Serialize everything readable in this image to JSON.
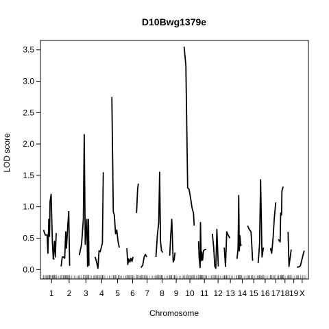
{
  "chart_data": {
    "type": "line",
    "title": "D10Bwg1379e",
    "xlabel": "Chromosome",
    "ylabel": "LOD score",
    "ylim": [
      -0.15,
      3.65
    ],
    "yticks": [
      0.0,
      0.5,
      1.0,
      1.5,
      2.0,
      2.5,
      3.0,
      3.5
    ],
    "ytick_labels": [
      "0.0",
      "0.5",
      "1.0",
      "1.5",
      "2.0",
      "2.5",
      "3.0",
      "3.5"
    ],
    "grid": false,
    "legend": "none",
    "x_unit": "cM (cumulative genome position)",
    "chromosomes": [
      {
        "label": "1",
        "start": 0,
        "length": 95
      },
      {
        "label": "2",
        "start": 100,
        "length": 95
      },
      {
        "label": "3",
        "start": 200,
        "length": 85
      },
      {
        "label": "4",
        "start": 290,
        "length": 85
      },
      {
        "label": "5",
        "start": 380,
        "length": 85
      },
      {
        "label": "6",
        "start": 470,
        "length": 75
      },
      {
        "label": "7",
        "start": 550,
        "length": 80
      },
      {
        "label": "8",
        "start": 635,
        "length": 80
      },
      {
        "label": "9",
        "start": 720,
        "length": 70
      },
      {
        "label": "10",
        "start": 795,
        "length": 75
      },
      {
        "label": "11",
        "start": 875,
        "length": 80
      },
      {
        "label": "12",
        "start": 960,
        "length": 65
      },
      {
        "label": "13",
        "start": 1030,
        "length": 65
      },
      {
        "label": "14",
        "start": 1100,
        "length": 60
      },
      {
        "label": "15",
        "start": 1165,
        "length": 60
      },
      {
        "label": "16",
        "start": 1230,
        "length": 60
      },
      {
        "label": "17",
        "start": 1295,
        "length": 50
      },
      {
        "label": "18",
        "start": 1350,
        "length": 45
      },
      {
        "label": "19",
        "start": 1400,
        "length": 45
      },
      {
        "label": "X",
        "start": 1450,
        "length": 40
      }
    ],
    "x_range": [
      0,
      1490
    ],
    "series": [
      {
        "chr": "1",
        "x": [
          2,
          12,
          22,
          27,
          32,
          36,
          39,
          45,
          52,
          57,
          64
        ],
        "y": [
          0.63,
          0.55,
          0.55,
          0.26,
          0.8,
          0.53,
          1.08,
          1.2,
          0.45,
          0.17,
          0.17
        ]
      },
      {
        "chr": "1b",
        "x": [
          57,
          64,
          69,
          74
        ],
        "y": [
          0.17,
          0.45,
          0.2,
          0.58
        ]
      },
      {
        "chr": "2",
        "x": [
          102,
          108,
          114,
          122,
          128,
          132,
          138,
          145
        ],
        "y": [
          0.05,
          0.2,
          0.2,
          0.18,
          0.6,
          0.34,
          0.63,
          0.93
        ]
      },
      {
        "chr": "2b",
        "x": [
          145,
          150
        ],
        "y": [
          0.93,
          0.06
        ]
      },
      {
        "chr": "3",
        "x": [
          205,
          218,
          228,
          233,
          239,
          248,
          252,
          257,
          260
        ],
        "y": [
          0.23,
          0.4,
          0.8,
          2.15,
          0.4,
          0.8,
          0.05,
          0.8,
          0.06
        ]
      },
      {
        "chr": "4",
        "x": [
          295,
          303,
          311,
          317,
          323,
          330,
          336
        ],
        "y": [
          0.2,
          0.12,
          0.02,
          0.3,
          0.28,
          0.35,
          0.42
        ]
      },
      {
        "chr": "4b",
        "x": [
          336,
          341
        ],
        "y": [
          0.42,
          1.55
        ]
      },
      {
        "chr": "5",
        "x": [
          390,
          398,
          404,
          411,
          418,
          425,
          432
        ],
        "y": [
          2.75,
          0.92,
          0.87,
          0.57,
          0.63,
          0.45,
          0.35
        ]
      },
      {
        "chr": "6",
        "x": [
          475,
          480,
          485,
          492,
          498,
          504,
          510
        ],
        "y": [
          0.34,
          0.08,
          0.17,
          0.12,
          0.18,
          0.13,
          0.2
        ]
      },
      {
        "chr": "6b",
        "x": [
          530,
          536,
          540
        ],
        "y": [
          0.9,
          1.28,
          1.37
        ]
      },
      {
        "chr": "7",
        "x": [
          555,
          560,
          565,
          573,
          580,
          588
        ],
        "y": [
          0.03,
          0.05,
          0.07,
          0.2,
          0.24,
          0.2
        ]
      },
      {
        "chr": "8",
        "x": [
          640,
          648,
          656,
          661,
          666,
          672,
          679
        ],
        "y": [
          0.2,
          0.55,
          0.75,
          1.55,
          0.45,
          0.3,
          0.27
        ]
      },
      {
        "chr": "9",
        "x": [
          718,
          724,
          730,
          738,
          744,
          748
        ],
        "y": [
          0.22,
          0.55,
          0.8,
          0.12,
          0.16,
          0.27
        ]
      },
      {
        "chr": "10",
        "x": [
          800,
          810,
          820,
          828,
          836,
          845,
          853,
          857
        ],
        "y": [
          3.55,
          3.25,
          1.3,
          1.28,
          1.15,
          0.98,
          0.9,
          0.7
        ]
      },
      {
        "chr": "11",
        "x": [
          882,
          885,
          891,
          893,
          897,
          900,
          905,
          910,
          918,
          926
        ],
        "y": [
          0.45,
          0.2,
          0.03,
          0.75,
          0.14,
          0.28,
          0.15,
          0.3,
          0.32,
          0.32
        ]
      },
      {
        "chr": "12",
        "x": [
          960,
          968,
          974,
          980,
          986,
          994
        ],
        "y": [
          0.57,
          0.35,
          0.05,
          0.02,
          0.64,
          0.05
        ]
      },
      {
        "chr": "13",
        "x": [
          1028,
          1035,
          1042,
          1050,
          1060
        ],
        "y": [
          0.35,
          0.05,
          0.6,
          0.55,
          0.5
        ]
      },
      {
        "chr": "14",
        "x": [
          1100,
          1106,
          1110,
          1113,
          1117,
          1121,
          1125
        ],
        "y": [
          0.17,
          0.33,
          1.18,
          0.3,
          0.54,
          0.38,
          0.4
        ]
      },
      {
        "chr": "15",
        "x": [
          1160,
          1170,
          1180,
          1189
        ],
        "y": [
          0.7,
          0.64,
          0.6,
          0.14
        ]
      },
      {
        "chr": "16",
        "x": [
          1220,
          1228,
          1234,
          1242,
          1250
        ],
        "y": [
          0.1,
          0.4,
          1.43,
          0.2,
          0.35
        ]
      },
      {
        "chr": "17",
        "x": [
          1290,
          1297,
          1305,
          1312,
          1320
        ],
        "y": [
          0.34,
          0.26,
          0.5,
          0.82,
          1.07
        ]
      },
      {
        "chr": "18",
        "x": [
          1335,
          1345,
          1348,
          1353,
          1355,
          1360,
          1363
        ],
        "y": [
          0.48,
          0.44,
          0.9,
          0.87,
          1.25,
          1.3,
          1.32
        ]
      },
      {
        "chr": "19",
        "x": [
          1390,
          1395,
          1402,
          1408
        ],
        "y": [
          0.6,
          0.05,
          0.2,
          0.32
        ]
      },
      {
        "chr": "X",
        "x": [
          1440,
          1450,
          1460,
          1472,
          1482
        ],
        "y": [
          0.04,
          0.04,
          0.06,
          0.2,
          0.3
        ]
      }
    ]
  }
}
